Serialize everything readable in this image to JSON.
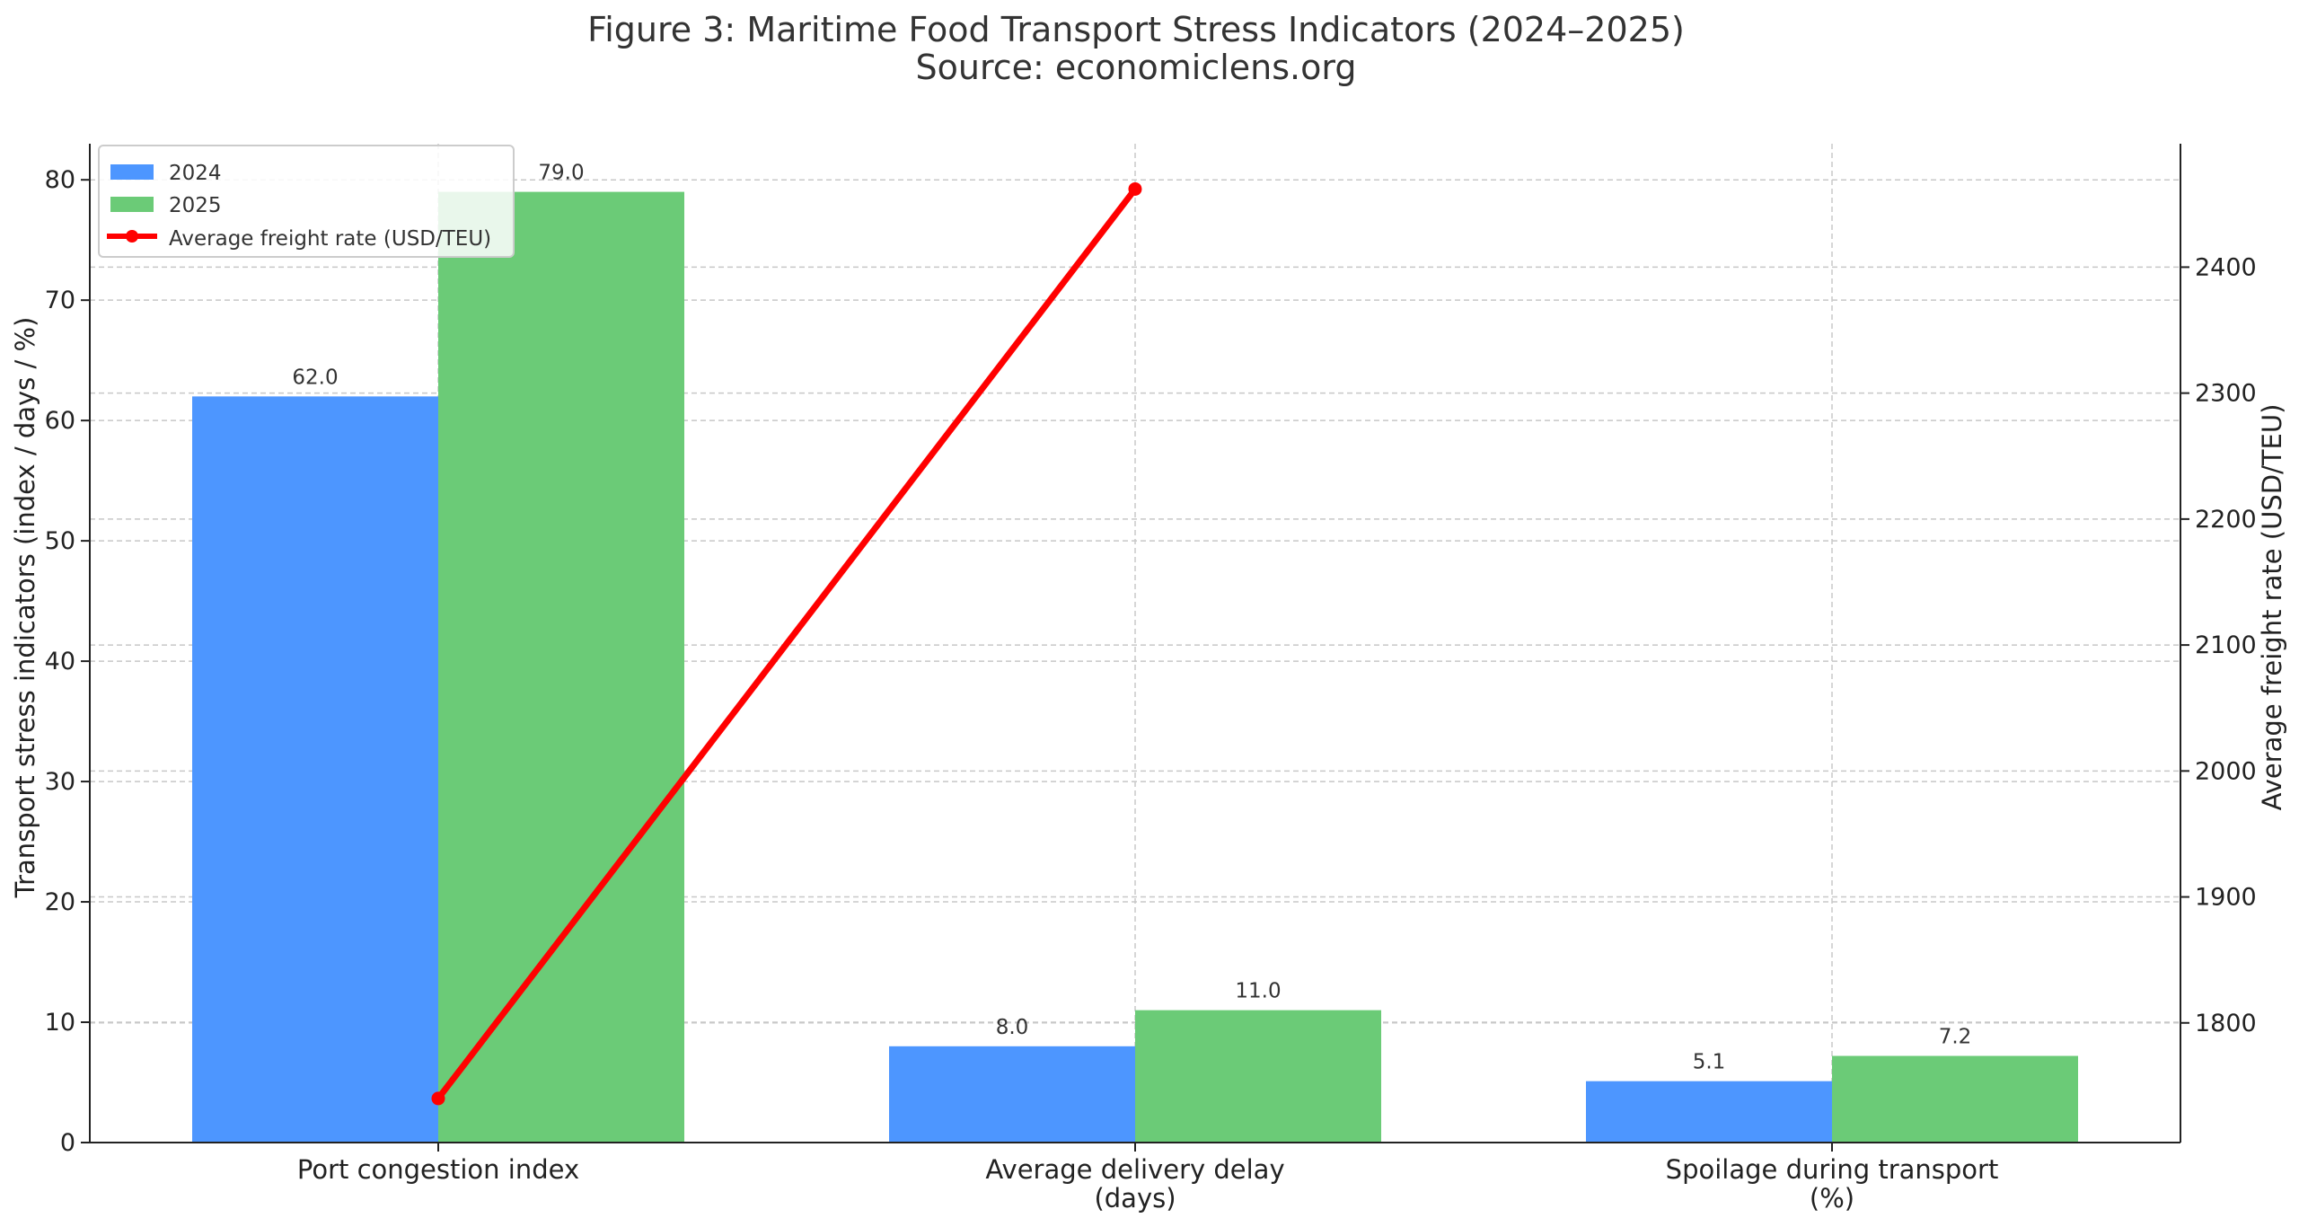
{
  "chart_data": {
    "type": "bar",
    "title": "Figure 3: Maritime Food Transport Stress Indicators (2024–2025)",
    "subtitle": "Source: economiclens.org",
    "categories": [
      [
        "Port congestion index"
      ],
      [
        "Average delivery delay",
        "(days)"
      ],
      [
        "Spoilage during transport",
        "(%)"
      ]
    ],
    "ylabel": "Transport stress indicators (index / days / %)",
    "ylim": [
      0,
      83
    ],
    "yticks": [
      0,
      10,
      20,
      30,
      40,
      50,
      60,
      70,
      80
    ],
    "y2label": "Average freight rate (USD/TEU)",
    "y2lim": [
      1705,
      2498
    ],
    "y2ticks": [
      1800,
      1900,
      2000,
      2100,
      2200,
      2300,
      2400
    ],
    "series": [
      {
        "name": "2024",
        "values": [
          62.0,
          8.0,
          5.1
        ],
        "labels": [
          "62.0",
          "8.0",
          "5.1"
        ],
        "color": "#4d96ff"
      },
      {
        "name": "2025",
        "values": [
          79.0,
          11.0,
          7.2
        ],
        "labels": [
          "79.0",
          "11.0",
          "7.2"
        ],
        "color": "#6bcb77"
      }
    ],
    "line_series": {
      "name": "Average freight rate (USD/TEU)",
      "axis": "right",
      "x_index": [
        0,
        1
      ],
      "values": [
        1740,
        2462
      ],
      "color": "#ff0000"
    },
    "grid": true,
    "legend_position": "upper-left"
  }
}
